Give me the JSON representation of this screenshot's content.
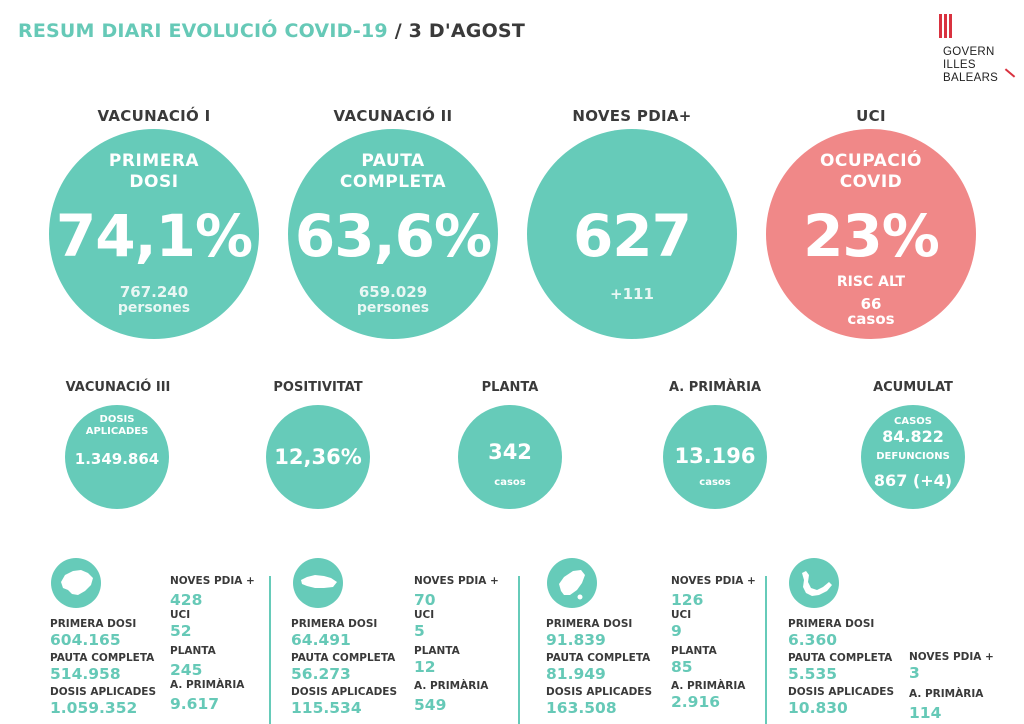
{
  "header": {
    "title_main": "RESUM DIARI EVOLUCIÓ COVID-19",
    "title_sep": "/",
    "title_date": "3 D'AGOST",
    "logo_lines": [
      "GOVERN",
      "ILLES",
      "BALEARS"
    ]
  },
  "top": [
    {
      "label": "VACUNACIÓ I",
      "head": [
        "PRIMERA",
        "DOSI"
      ],
      "big": "74,1%",
      "sub1": "767.240",
      "sub2": "persones"
    },
    {
      "label": "VACUNACIÓ II",
      "head": [
        "PAUTA",
        "COMPLETA"
      ],
      "big": "63,6%",
      "sub1": "659.029",
      "sub2": "persones"
    },
    {
      "label": "NOVES PDIA+",
      "big": "627",
      "sub1": "+111"
    },
    {
      "label": "UCI",
      "head": [
        "OCUPACIÓ",
        "COVID"
      ],
      "big": "23%",
      "risk": "RISC ALT",
      "sub1": "66",
      "sub2": "casos"
    }
  ],
  "middle": [
    {
      "label": "VACUNACIÓ III",
      "small": [
        "DOSIS",
        "APLICADES"
      ],
      "value": "1.349.864"
    },
    {
      "label": "POSITIVITAT",
      "value": "12,36%"
    },
    {
      "label": "PLANTA",
      "value": "342",
      "unit": "casos"
    },
    {
      "label": "A. PRIMÀRIA",
      "value": "13.196",
      "unit": "casos"
    },
    {
      "label": "ACUMULAT",
      "cases_label": "CASOS",
      "cases": "84.822",
      "deaths_label": "DEFUNCIONS",
      "deaths": "867 (+4)"
    }
  ],
  "islands": [
    {
      "island_icon": "mallorca-icon",
      "primera_dosi": "604.165",
      "pauta_completa": "514.958",
      "dosis_aplicades": "1.059.352",
      "noves_pdia": "428",
      "uci": "52",
      "planta": "245",
      "a_primaria": "9.617"
    },
    {
      "island_icon": "menorca-icon",
      "primera_dosi": "64.491",
      "pauta_completa": "56.273",
      "dosis_aplicades": "115.534",
      "noves_pdia": "70",
      "uci": "5",
      "planta": "12",
      "a_primaria": "549"
    },
    {
      "island_icon": "eivissa-icon",
      "primera_dosi": "91.839",
      "pauta_completa": "81.949",
      "dosis_aplicades": "163.508",
      "noves_pdia": "126",
      "uci": "9",
      "planta": "85",
      "a_primaria": "2.916"
    },
    {
      "island_icon": "formentera-icon",
      "primera_dosi": "6.360",
      "pauta_completa": "5.535",
      "dosis_aplicades": "10.830",
      "noves_pdia": "3",
      "a_primaria": "114"
    }
  ],
  "labels": {
    "primera_dosi": "PRIMERA DOSI",
    "pauta_completa": "PAUTA COMPLETA",
    "dosis_aplicades": "DOSIS APLICADES",
    "noves_pdia": "NOVES PDIA +",
    "uci": "UCI",
    "planta": "PLANTA",
    "a_primaria": "A. PRIMÀRIA"
  },
  "colors": {
    "accent": "#66cbb9",
    "alert": "#f08888",
    "text": "#3a3a3a",
    "brand_red": "#d9323f"
  }
}
